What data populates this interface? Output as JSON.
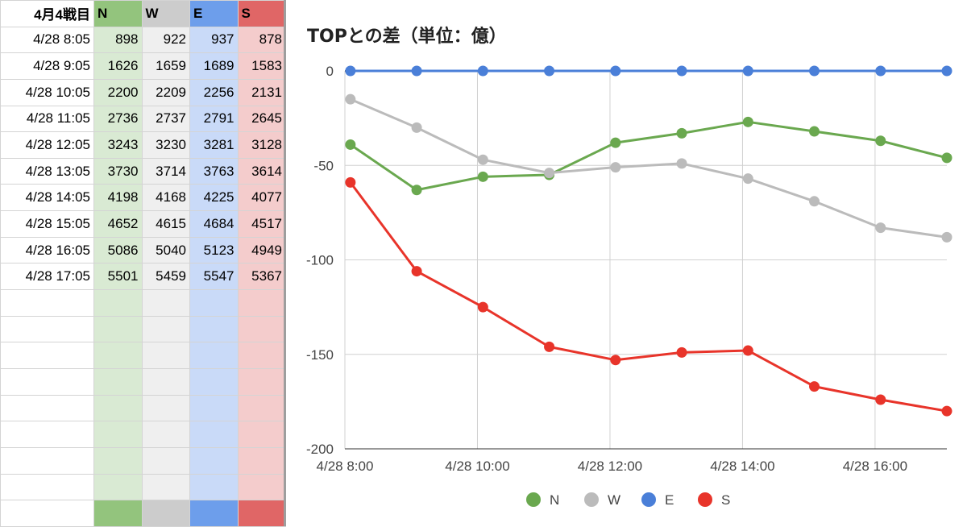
{
  "sheet": {
    "header": {
      "corner": "4月4戦目",
      "cols": [
        "N",
        "W",
        "E",
        "S"
      ]
    },
    "col_colors": {
      "head": [
        "#93c47d",
        "#cccccc",
        "#6d9eeb",
        "#e06666"
      ],
      "body": [
        "#d9ead3",
        "#efefef",
        "#c9daf8",
        "#f4cccc"
      ]
    },
    "rows": [
      {
        "time": "4/28 8:05",
        "vals": [
          "898",
          "922",
          "937",
          "878"
        ]
      },
      {
        "time": "4/28 9:05",
        "vals": [
          "1626",
          "1659",
          "1689",
          "1583"
        ]
      },
      {
        "time": "4/28 10:05",
        "vals": [
          "2200",
          "2209",
          "2256",
          "2131"
        ]
      },
      {
        "time": "4/28 11:05",
        "vals": [
          "2736",
          "2737",
          "2791",
          "2645"
        ]
      },
      {
        "time": "4/28 12:05",
        "vals": [
          "3243",
          "3230",
          "3281",
          "3128"
        ]
      },
      {
        "time": "4/28 13:05",
        "vals": [
          "3730",
          "3714",
          "3763",
          "3614"
        ]
      },
      {
        "time": "4/28 14:05",
        "vals": [
          "4198",
          "4168",
          "4225",
          "4077"
        ]
      },
      {
        "time": "4/28 15:05",
        "vals": [
          "4652",
          "4615",
          "4684",
          "4517"
        ]
      },
      {
        "time": "4/28 16:05",
        "vals": [
          "5086",
          "5040",
          "5123",
          "4949"
        ]
      },
      {
        "time": "4/28 17:05",
        "vals": [
          "5501",
          "5459",
          "5547",
          "5367"
        ]
      }
    ]
  },
  "chart_data": {
    "type": "line",
    "title": "TOPとの差（単位：億）",
    "xlabel": "",
    "ylabel": "",
    "x": [
      "4/28 8:05",
      "4/28 9:05",
      "4/28 10:05",
      "4/28 11:05",
      "4/28 12:05",
      "4/28 13:05",
      "4/28 14:05",
      "4/28 15:05",
      "4/28 16:05",
      "4/28 17:05"
    ],
    "x_ticks": [
      "4/28 8:00",
      "4/28 10:00",
      "4/28 12:00",
      "4/28 14:00",
      "4/28 16:00"
    ],
    "ylim": [
      -200,
      0
    ],
    "y_ticks": [
      "0",
      "-50",
      "-100",
      "-150",
      "-200"
    ],
    "grid": true,
    "legend_position": "bottom",
    "series": [
      {
        "name": "N",
        "color": "#6aa84f",
        "values": [
          -39,
          -63,
          -56,
          -55,
          -38,
          -33,
          -27,
          -32,
          -37,
          -46
        ]
      },
      {
        "name": "W",
        "color": "#bbbbbb",
        "values": [
          -15,
          -30,
          -47,
          -54,
          -51,
          -49,
          -57,
          -69,
          -83,
          -88
        ]
      },
      {
        "name": "E",
        "color": "#4a7fd8",
        "values": [
          0,
          0,
          0,
          0,
          0,
          0,
          0,
          0,
          0,
          0
        ]
      },
      {
        "name": "S",
        "color": "#e8342a",
        "values": [
          -59,
          -106,
          -125,
          -146,
          -153,
          -149,
          -148,
          -167,
          -174,
          -180
        ]
      }
    ]
  }
}
